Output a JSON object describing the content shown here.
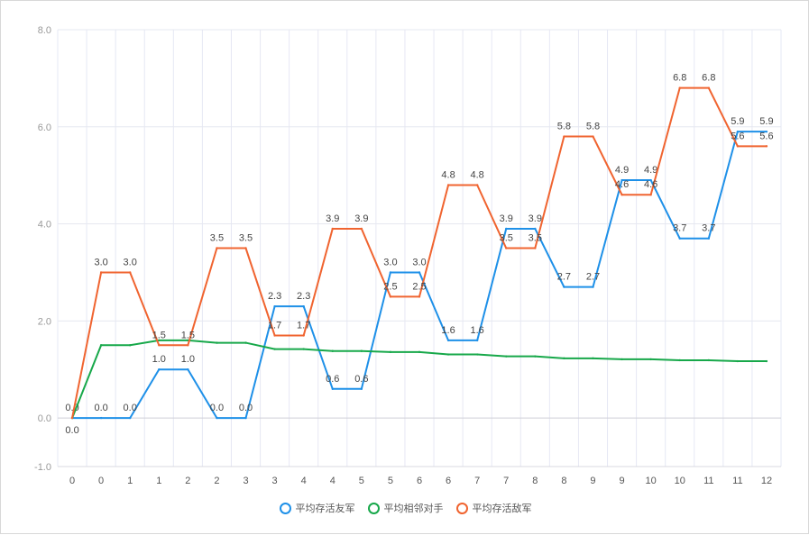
{
  "chart_data": {
    "type": "line",
    "categories": [
      "0",
      "0",
      "1",
      "1",
      "2",
      "2",
      "3",
      "3",
      "4",
      "4",
      "5",
      "5",
      "6",
      "6",
      "7",
      "7",
      "8",
      "8",
      "9",
      "9",
      "10",
      "10",
      "11",
      "11",
      "12"
    ],
    "ylim": [
      -1,
      8
    ],
    "yticks": [
      -1,
      0,
      2,
      4,
      6,
      8
    ],
    "ytick_labels": [
      "-1.0",
      "0.0",
      "2.0",
      "4.0",
      "6.0",
      "8.0"
    ],
    "grid": true,
    "legend_position": "bottom-center",
    "series": [
      {
        "name": "平均存活友军",
        "color": "#1e90e8",
        "show_labels": true,
        "values": [
          0,
          0,
          0,
          1.0,
          1.0,
          0,
          0,
          2.3,
          2.3,
          0.6,
          0.6,
          3.0,
          3.0,
          1.6,
          1.6,
          3.9,
          3.9,
          2.7,
          2.7,
          4.9,
          4.9,
          3.7,
          3.7,
          5.9,
          5.9
        ]
      },
      {
        "name": "平均相邻对手",
        "color": "#17a84a",
        "show_labels": false,
        "values": [
          0,
          1.5,
          1.5,
          1.6,
          1.6,
          1.55,
          1.55,
          1.42,
          1.42,
          1.38,
          1.38,
          1.36,
          1.36,
          1.31,
          1.31,
          1.27,
          1.27,
          1.23,
          1.23,
          1.21,
          1.21,
          1.19,
          1.19,
          1.17,
          1.17
        ]
      },
      {
        "name": "平均存活敌军",
        "color": "#f06430",
        "show_labels": true,
        "values": [
          0,
          3.0,
          3.0,
          1.5,
          1.5,
          3.5,
          3.5,
          1.7,
          1.7,
          3.9,
          3.9,
          2.5,
          2.5,
          4.8,
          4.8,
          3.5,
          3.5,
          5.8,
          5.8,
          4.6,
          4.6,
          6.8,
          6.8,
          5.6,
          5.6
        ]
      }
    ]
  }
}
